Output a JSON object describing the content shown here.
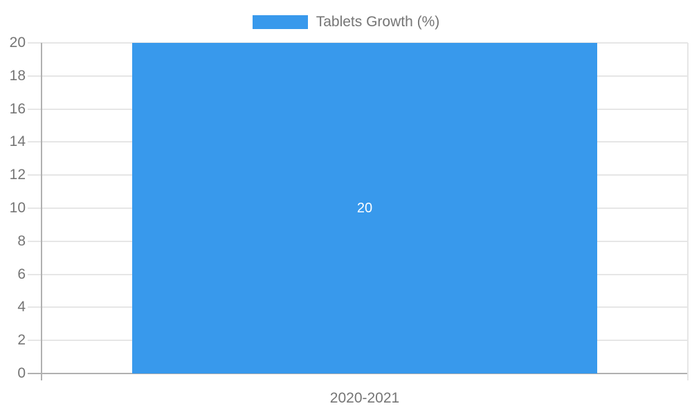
{
  "chart_data": {
    "type": "bar",
    "title": "",
    "categories": [
      "2020-2021"
    ],
    "series": [
      {
        "name": "Tablets Growth (%)",
        "values": [
          20
        ],
        "data_labels": [
          "20"
        ],
        "color": "#3899ec",
        "data_label_color": "#ffffff"
      }
    ],
    "xlabel": "",
    "ylabel": "",
    "ylim": [
      0,
      20
    ],
    "ytick_step": 2,
    "yticks": [
      0,
      2,
      4,
      6,
      8,
      10,
      12,
      14,
      16,
      18,
      20
    ],
    "grid": true,
    "legend_position": "top"
  },
  "legend": {
    "label": "Tablets Growth (%)",
    "swatch_color": "#3899ec"
  },
  "colors": {
    "bar": "#3899ec",
    "grid": "#e6e6e6",
    "axis": "#b0b0b0",
    "right_border": "#e6e6e6",
    "text": "#757575",
    "data_label": "#ffffff",
    "background": "#ffffff"
  }
}
